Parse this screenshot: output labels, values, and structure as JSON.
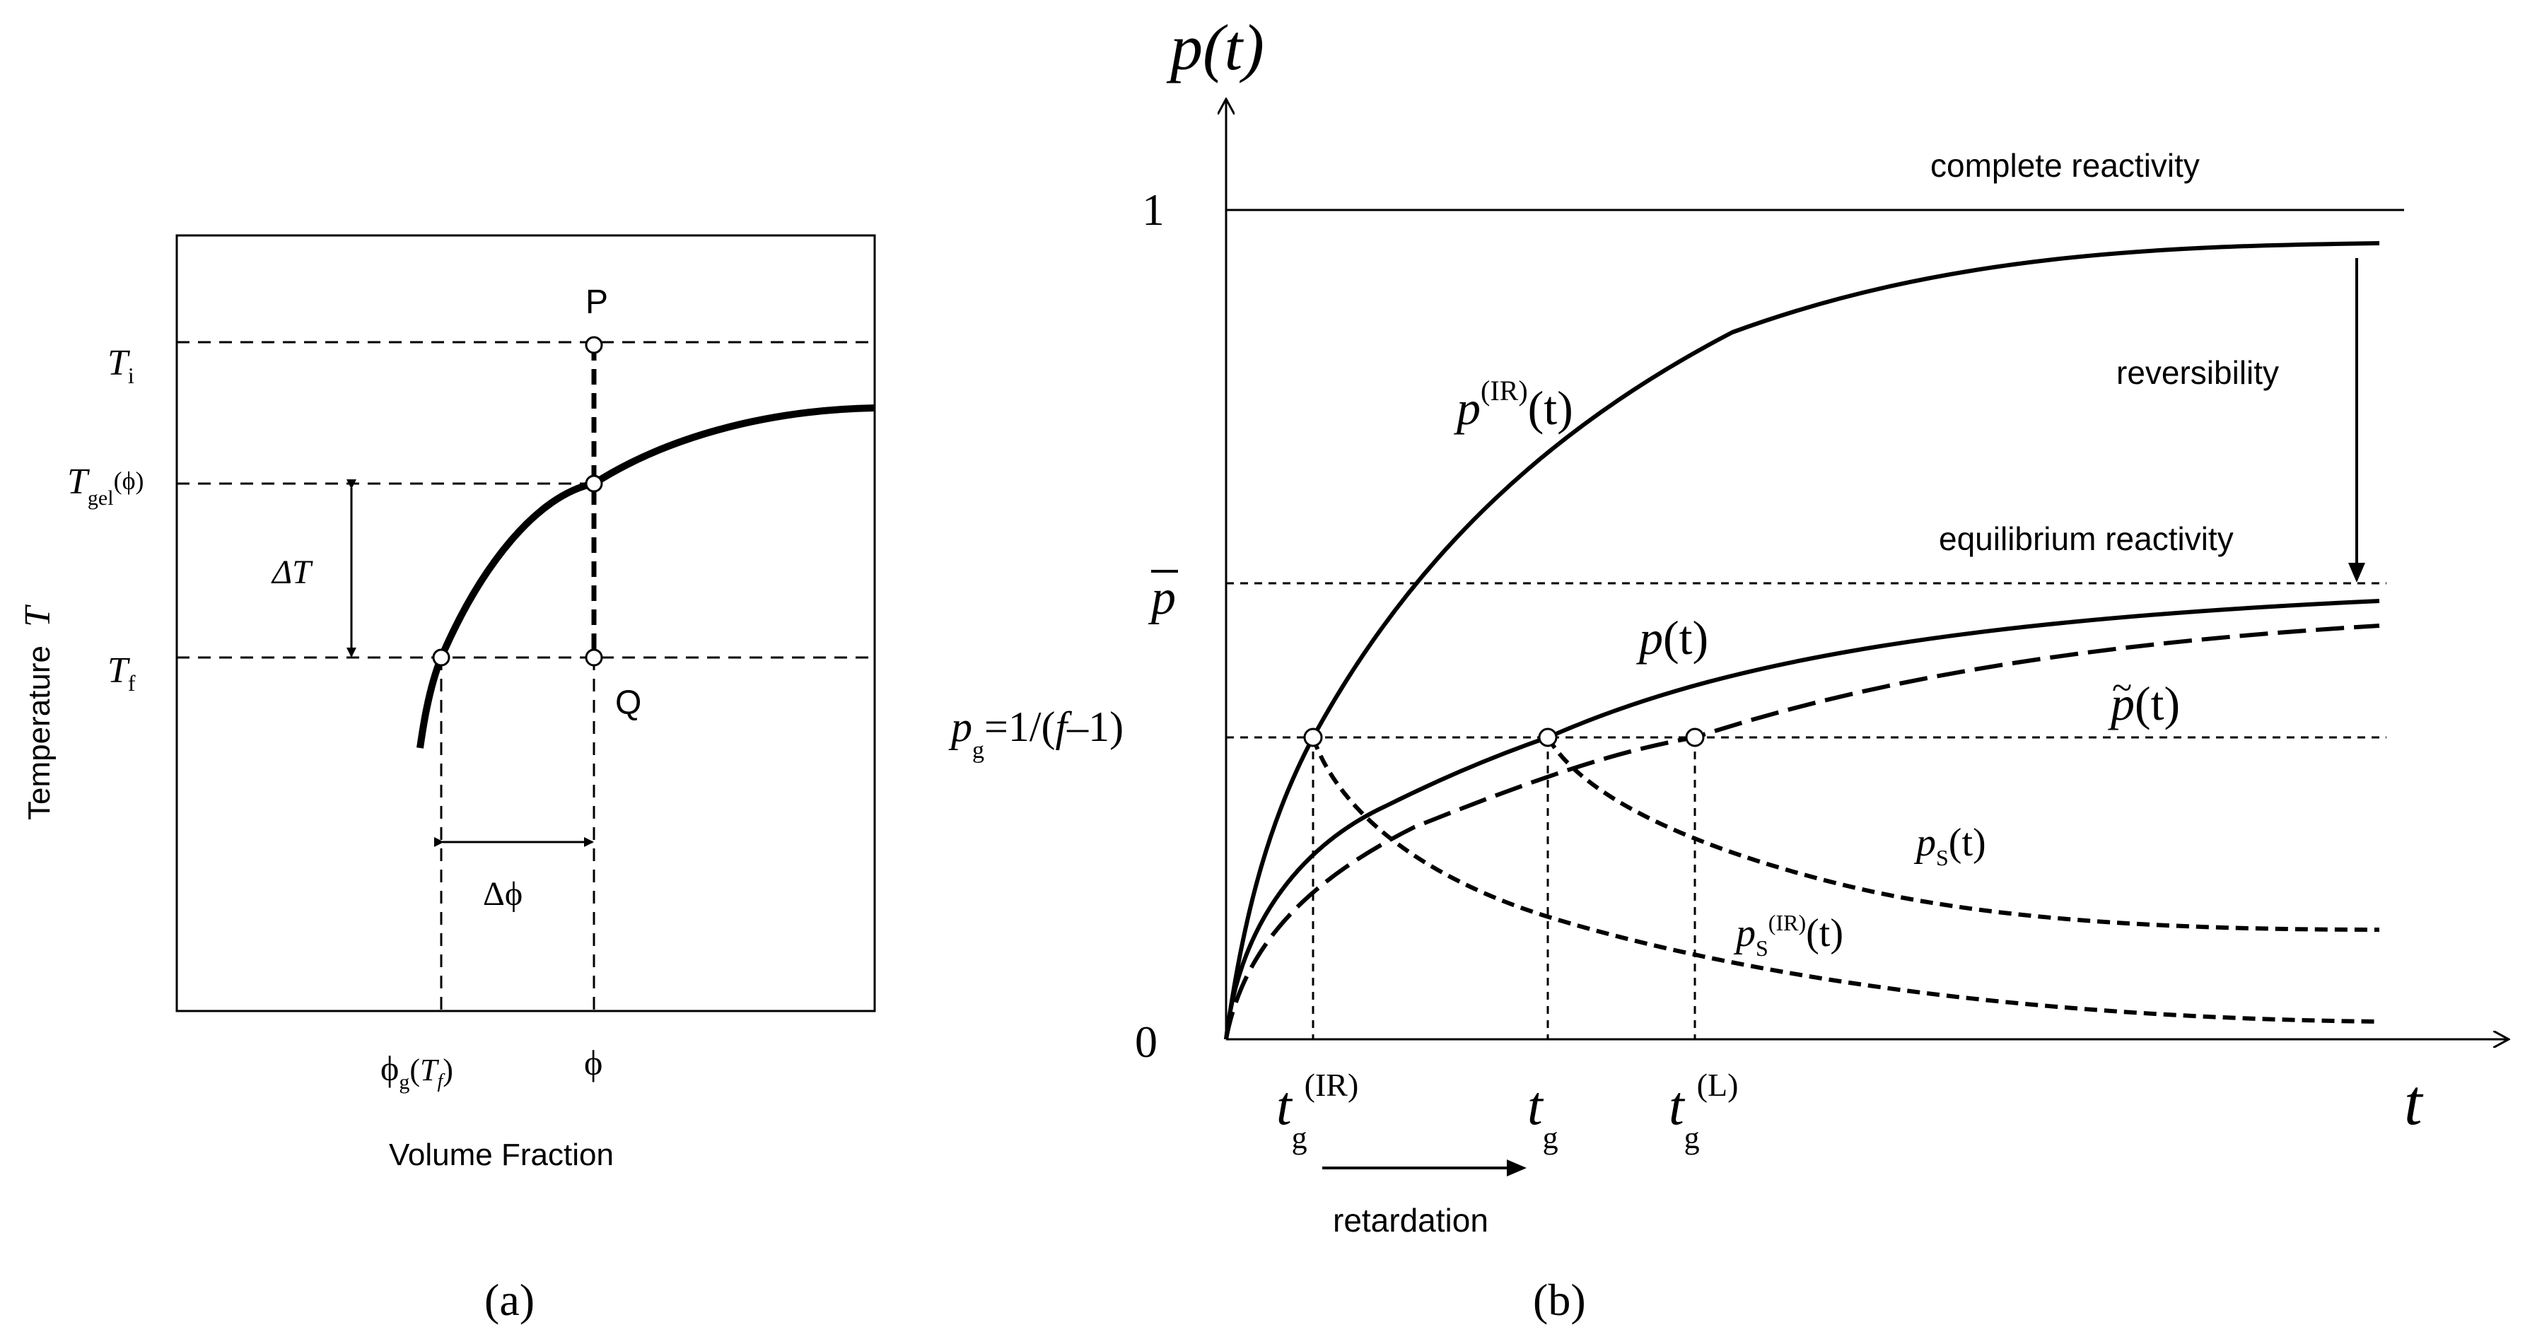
{
  "panel_a": {
    "caption": "(a)",
    "x_label": "Volume Fraction",
    "y_label_word": "Temperature",
    "y_label_symbol": "T",
    "ticks": {
      "Ti_main": "T",
      "Ti_sub": "i",
      "Tgel_main": "T",
      "Tgel_sub": "gel",
      "Tgel_arg": "(ϕ)",
      "Tf_main": "T",
      "Tf_sub": "f",
      "phig_main": "ϕ",
      "phig_sub": "g",
      "phig_arg_open": "(",
      "phig_arg_T": "T",
      "phig_arg_f": "f",
      "phig_arg_close": ")",
      "phi": "ϕ"
    },
    "points": {
      "P": "P",
      "Q": "Q"
    },
    "delta_T": "ΔT",
    "delta_phi": "Δϕ"
  },
  "panel_b": {
    "caption": "(b)",
    "y_axis_title": "p(t)",
    "x_axis_title": "t",
    "y_ticks": {
      "one": "1",
      "zero": "0",
      "pbar": "p",
      "pg_main": "p",
      "pg_sub": "g",
      "pg_rest": "=1/(",
      "pg_f": "f",
      "pg_end": "–1)"
    },
    "x_ticks": {
      "tgIR_t": "t",
      "tgIR_sub": "g",
      "tgIR_sup": "(IR)",
      "tg_t": "t",
      "tg_sub": "g",
      "tgL_t": "t",
      "tgL_sub": "g",
      "tgL_sup": "(L)"
    },
    "labels": {
      "complete": "complete reactivity",
      "equilibrium": "equilibrium reactivity",
      "reversibility": "reversibility",
      "retardation": "retardation",
      "pIR_p": "p",
      "pIR_sup": "(IR)",
      "pIR_t": "(t)",
      "pt_p": "p",
      "pt_t": "(t)",
      "ptilde_p": "p",
      "ptilde_tilde": "~",
      "ptilde_t": "(t)",
      "ps_p": "p",
      "ps_sub": "S",
      "ps_t": "(t)",
      "psIR_p": "p",
      "psIR_sub": "S",
      "psIR_sup": "(IR)",
      "psIR_t": "(t)"
    }
  }
}
